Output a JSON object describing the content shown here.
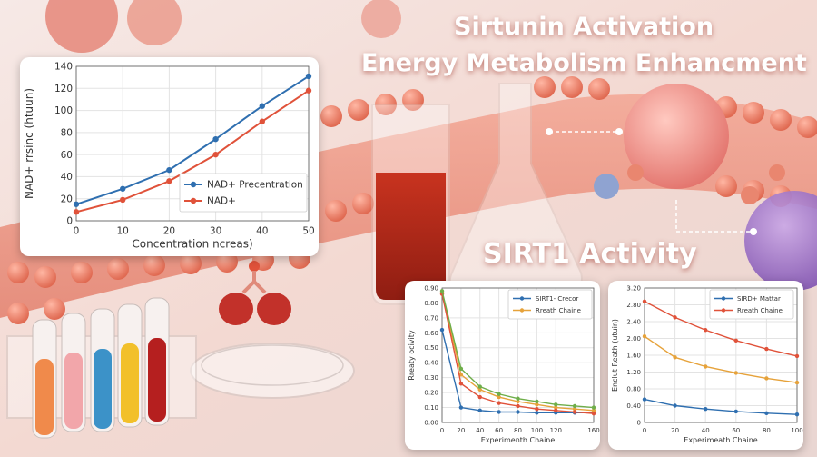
{
  "heading": {
    "line1": "Sirtunin Activation",
    "line2": "Energy Metabolism Enhancment",
    "sirt1": "SIRT1 Activity"
  },
  "chart_data": [
    {
      "type": "line",
      "xlabel": "Concentration  ncreas)",
      "ylabel": "NAD+ rrsinc (htuun)",
      "xlim": [
        0,
        50
      ],
      "ylim": [
        0,
        140
      ],
      "xticks": [
        0,
        10,
        20,
        30,
        40,
        50
      ],
      "yticks": [
        0,
        20,
        40,
        60,
        80,
        100,
        120,
        140
      ],
      "grid": true,
      "legend": "bottom-right",
      "series": [
        {
          "name": "NAD+ Precentration",
          "color": "#2f6fb0",
          "x": [
            0,
            10,
            20,
            30,
            40,
            50
          ],
          "y": [
            15,
            29,
            46,
            74,
            104,
            131
          ]
        },
        {
          "name": "NAD+",
          "color": "#e0523a",
          "x": [
            0,
            10,
            20,
            30,
            40,
            50
          ],
          "y": [
            8,
            19,
            36,
            60,
            90,
            118
          ]
        }
      ]
    },
    {
      "type": "line",
      "xlabel": "Experimenth Chaine",
      "ylabel": "Rreaty ocivity",
      "xlim": [
        0,
        160
      ],
      "ylim": [
        0,
        0.9
      ],
      "xticks": [
        0,
        20,
        40,
        60,
        80,
        100,
        120,
        160
      ],
      "yticks": [
        0,
        0.1,
        0.2,
        0.3,
        0.4,
        0.5,
        0.6,
        0.7,
        0.8,
        0.9
      ],
      "ytick_labels": [
        "0.00",
        "0.10",
        "0.20",
        "0.30",
        "0.40",
        "0.50",
        "0.60",
        "0.70",
        "0.80",
        "0.90"
      ],
      "grid": true,
      "legend": "top-right",
      "series": [
        {
          "name": "SIRT1- Crecor",
          "color": "#2f6fb0",
          "x": [
            0,
            20,
            40,
            60,
            80,
            100,
            120,
            140,
            160
          ],
          "y": [
            0.62,
            0.1,
            0.08,
            0.07,
            0.07,
            0.065,
            0.065,
            0.065,
            0.065
          ]
        },
        {
          "name": "Rreath Chaine",
          "color": "#e6a23a",
          "x": [
            0,
            20,
            40,
            60,
            80,
            100,
            120,
            140,
            160
          ],
          "y": [
            0.87,
            0.32,
            0.22,
            0.17,
            0.14,
            0.12,
            0.1,
            0.09,
            0.08
          ]
        },
        {
          "color": "#e0523a",
          "x": [
            0,
            20,
            40,
            60,
            80,
            100,
            120,
            140,
            160
          ],
          "y": [
            0.86,
            0.26,
            0.17,
            0.13,
            0.11,
            0.09,
            0.08,
            0.07,
            0.06
          ]
        },
        {
          "color": "#6fae4a",
          "x": [
            0,
            20,
            40,
            60,
            80,
            100,
            120,
            140,
            160
          ],
          "y": [
            0.88,
            0.36,
            0.24,
            0.19,
            0.16,
            0.14,
            0.12,
            0.11,
            0.1
          ]
        }
      ]
    },
    {
      "type": "line",
      "xlabel": "Experimeath Chaine",
      "ylabel": "Enclut Reath (utuin)",
      "xlim": [
        0,
        100
      ],
      "ylim": [
        0,
        3.2
      ],
      "xticks": [
        0,
        20,
        40,
        60,
        80,
        100
      ],
      "yticks": [
        0,
        0.4,
        0.8,
        1.2,
        1.6,
        2.0,
        2.4,
        2.8,
        3.2
      ],
      "ytick_labels": [
        "0",
        "0.40",
        "0.80",
        "1.20",
        "1.60",
        "2.00",
        "2.40",
        "2.80",
        "3.20"
      ],
      "grid": true,
      "legend": "top-right",
      "series": [
        {
          "name": "SIRD+ Mattar",
          "color": "#2f6fb0",
          "x": [
            0,
            20,
            40,
            60,
            80,
            100
          ],
          "y": [
            0.55,
            0.4,
            0.32,
            0.26,
            0.22,
            0.19
          ]
        },
        {
          "name": "Rreath Chaine",
          "color": "#e0523a",
          "x": [
            0,
            20,
            40,
            60,
            80,
            100
          ],
          "y": [
            2.88,
            2.5,
            2.2,
            1.95,
            1.75,
            1.58
          ]
        },
        {
          "color": "#e6a23a",
          "x": [
            0,
            20,
            40,
            60,
            80,
            100
          ],
          "y": [
            2.05,
            1.55,
            1.33,
            1.18,
            1.05,
            0.95
          ]
        }
      ]
    }
  ]
}
